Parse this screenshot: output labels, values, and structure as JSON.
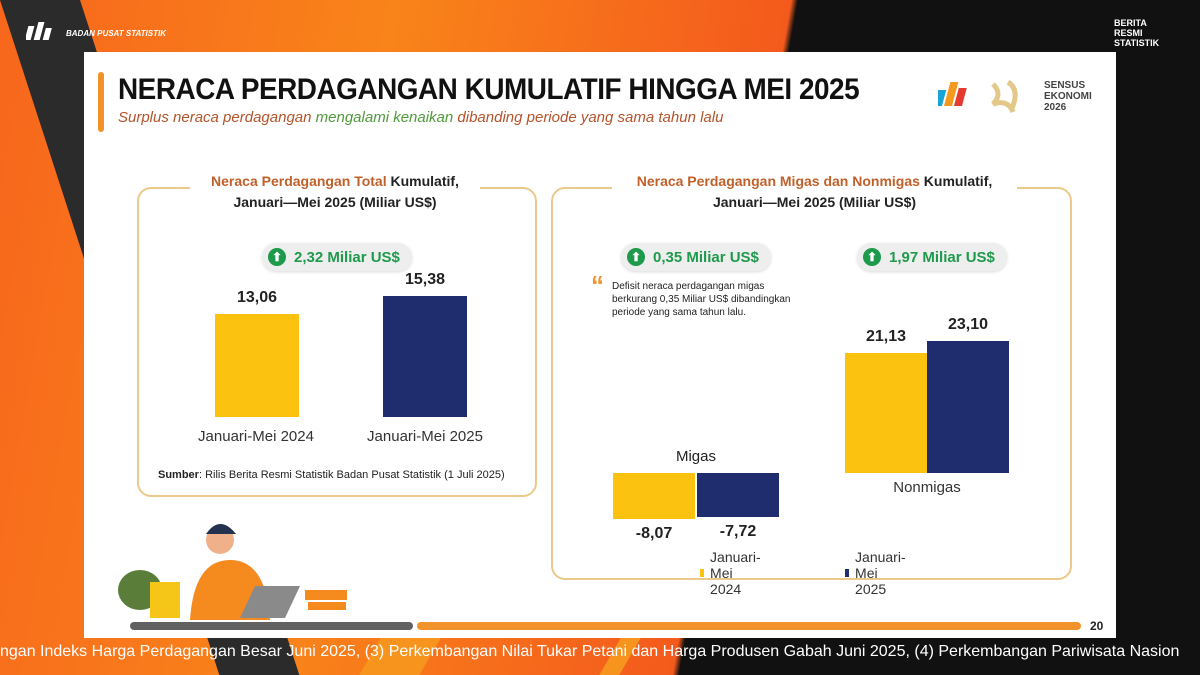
{
  "header": {
    "org_name": "BADAN PUSAT STATISTIK",
    "brs_logo": "BERITA RESMI STATISTIK"
  },
  "slide": {
    "title": "NERACA PERDAGANGAN KUMULATIF HINGGA MEI 2025",
    "subtitle_a": "Surplus neraca perdagangan ",
    "subtitle_b": "mengalami kenaikan",
    "subtitle_c": " dibanding periode yang sama tahun lalu",
    "logo_text": "SENSUS EKONOMI 2026",
    "page_number": "20",
    "source_label": "Sumber",
    "source_text": ": Rilis Berita Resmi Statistik Badan Pusat Statistik (1 Juli 2025)"
  },
  "colors": {
    "series_2024": "#fbc210",
    "series_2025": "#1f2d6e",
    "increase": "#1e9a4c",
    "accent": "#f2922a"
  },
  "chart_data": [
    {
      "type": "bar",
      "title_a": "Neraca Perdagangan Total",
      "title_b": " Kumulatif,",
      "title_c": "Januari—Mei 2025 (Miliar US$)",
      "categories": [
        "Januari-Mei 2024",
        "Januari-Mei 2025"
      ],
      "values": [
        13.06,
        15.38
      ],
      "value_labels": [
        "13,06",
        "15,38"
      ],
      "change_badge": "2,32 Miliar US$",
      "change_icon": "arrow-up-icon"
    },
    {
      "type": "bar",
      "title_a": "Neraca Perdagangan Migas dan Nonmigas",
      "title_b": " Kumulatif,",
      "title_c": "Januari—Mei 2025 (Miliar US$)",
      "categories": [
        "Migas",
        "Nonmigas"
      ],
      "series": [
        {
          "name": "Januari-Mei 2024",
          "values": [
            -8.07,
            21.13
          ],
          "value_labels": [
            "-8,07",
            "21,13"
          ]
        },
        {
          "name": "Januari-Mei 2025",
          "values": [
            -7.72,
            23.1
          ],
          "value_labels": [
            "-7,72",
            "23,10"
          ]
        }
      ],
      "change_badges": [
        "0,35 Miliar US$",
        "1,97 Miliar US$"
      ],
      "change_icon": "arrow-up-icon",
      "note": "Defisit neraca perdagangan migas berkurang 0,35 Miliar US$ dibandingkan periode yang sama tahun lalu.",
      "legend_position": "bottom"
    }
  ],
  "ticker": "ngan Indeks Harga Perdagangan Besar Juni 2025, (3) Perkembangan Nilai Tukar Petani dan Harga Produsen Gabah Juni 2025, (4) Perkembangan Pariwisata Nasion"
}
